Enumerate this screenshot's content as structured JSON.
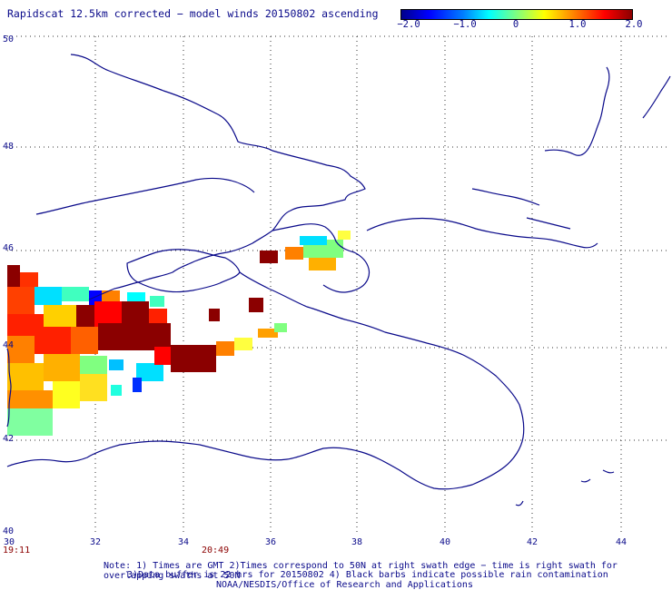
{
  "title": "Rapidscat 12.5km corrected − model winds 20150802 ascending",
  "colorbar": {
    "ticks": [
      "−2.0",
      "−1.0",
      "0",
      "1.0",
      "2.0"
    ],
    "colors": [
      "#00008b",
      "#0000ff",
      "#00ffff",
      "#ffff00",
      "#ff8000",
      "#ff0000",
      "#8b0000"
    ]
  },
  "axes": {
    "lat_labels": [
      "50",
      "48",
      "46",
      "44",
      "42",
      "40"
    ],
    "lon_labels": [
      "30",
      "32",
      "34",
      "36",
      "38",
      "40",
      "42",
      "44"
    ]
  },
  "times": {
    "start": "19:11",
    "end": "20:49"
  },
  "notes": {
    "line1": "Note: 1) Times are GMT 2)Times correspond to 50N at right swath edge − time is right swath for overlapping swaths at 50N",
    "line2": "3)Data buffer is 22 hrs for 20150802 4) Black barbs indicate possible rain contamination",
    "line3": "NOAA/NESDIS/Office of Research and Applications"
  }
}
